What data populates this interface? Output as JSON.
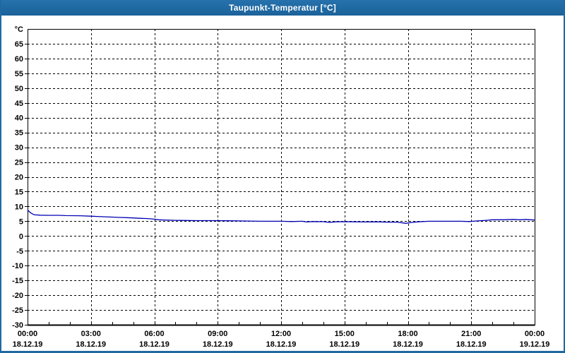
{
  "window": {
    "title": "Taupunkt-Temperatur [°C]",
    "titlebar_color": "#1f69a2",
    "border_color": "#1f69a2",
    "background": "#ffffff"
  },
  "chart_data": {
    "type": "line",
    "title": "Taupunkt-Temperatur [°C]",
    "grid": {
      "style": "dashed",
      "color": "#000000",
      "background": "#ffffff"
    },
    "y_axis": {
      "unit_label": "°C",
      "min": -30,
      "max": 70,
      "tick_step": 5,
      "ticks": [
        65,
        60,
        55,
        50,
        45,
        40,
        35,
        30,
        25,
        20,
        15,
        10,
        5,
        0,
        -5,
        -10,
        -15,
        -20,
        -25,
        -30
      ]
    },
    "x_axis": {
      "range_hours": [
        0,
        24
      ],
      "minor_tick_every_hours": 1,
      "grid_hours": [
        3,
        6,
        9,
        12,
        15,
        18,
        21
      ],
      "ticks": [
        {
          "hour": 0,
          "time": "00:00",
          "date": "18.12.19"
        },
        {
          "hour": 3,
          "time": "03:00",
          "date": "18.12.19"
        },
        {
          "hour": 6,
          "time": "06:00",
          "date": "18.12.19"
        },
        {
          "hour": 9,
          "time": "09:00",
          "date": "18.12.19"
        },
        {
          "hour": 12,
          "time": "12:00",
          "date": "18.12.19"
        },
        {
          "hour": 15,
          "time": "15:00",
          "date": "18.12.19"
        },
        {
          "hour": 18,
          "time": "18:00",
          "date": "18.12.19"
        },
        {
          "hour": 21,
          "time": "21:00",
          "date": "18.12.19"
        },
        {
          "hour": 24,
          "time": "00:00",
          "date": "19.12.19"
        }
      ]
    },
    "series": [
      {
        "name": "Taupunkt-Temperatur",
        "color": "#0000b4",
        "points": [
          [
            0.0,
            8.8
          ],
          [
            0.15,
            7.8
          ],
          [
            0.3,
            7.2
          ],
          [
            0.6,
            7.05
          ],
          [
            1.0,
            7.0
          ],
          [
            1.5,
            7.0
          ],
          [
            1.8,
            6.9
          ],
          [
            2.5,
            6.85
          ],
          [
            3.0,
            6.7
          ],
          [
            3.3,
            6.6
          ],
          [
            3.7,
            6.5
          ],
          [
            4.0,
            6.4
          ],
          [
            4.3,
            6.3
          ],
          [
            4.7,
            6.2
          ],
          [
            5.0,
            6.1
          ],
          [
            5.3,
            6.0
          ],
          [
            5.7,
            5.9
          ],
          [
            6.0,
            5.7
          ],
          [
            6.2,
            5.5
          ],
          [
            6.5,
            5.4
          ],
          [
            7.0,
            5.3
          ],
          [
            7.5,
            5.25
          ],
          [
            8.0,
            5.2
          ],
          [
            9.0,
            5.2
          ],
          [
            9.5,
            5.15
          ],
          [
            10.0,
            5.1
          ],
          [
            11.0,
            5.0
          ],
          [
            12.0,
            5.0
          ],
          [
            12.5,
            4.9
          ],
          [
            13.0,
            5.0
          ],
          [
            13.2,
            4.75
          ],
          [
            13.5,
            4.9
          ],
          [
            14.0,
            4.85
          ],
          [
            14.3,
            4.6
          ],
          [
            14.6,
            4.8
          ],
          [
            15.0,
            4.85
          ],
          [
            15.5,
            4.8
          ],
          [
            16.0,
            4.75
          ],
          [
            16.5,
            4.8
          ],
          [
            17.0,
            4.7
          ],
          [
            17.5,
            4.7
          ],
          [
            17.9,
            4.3
          ],
          [
            18.2,
            4.6
          ],
          [
            18.5,
            4.8
          ],
          [
            19.0,
            5.0
          ],
          [
            20.0,
            5.0
          ],
          [
            20.5,
            5.0
          ],
          [
            20.9,
            4.9
          ],
          [
            21.3,
            5.1
          ],
          [
            21.7,
            5.3
          ],
          [
            22.0,
            5.5
          ],
          [
            22.5,
            5.5
          ],
          [
            23.0,
            5.6
          ],
          [
            23.3,
            5.5
          ],
          [
            23.6,
            5.6
          ],
          [
            24.0,
            5.4
          ]
        ]
      }
    ]
  }
}
